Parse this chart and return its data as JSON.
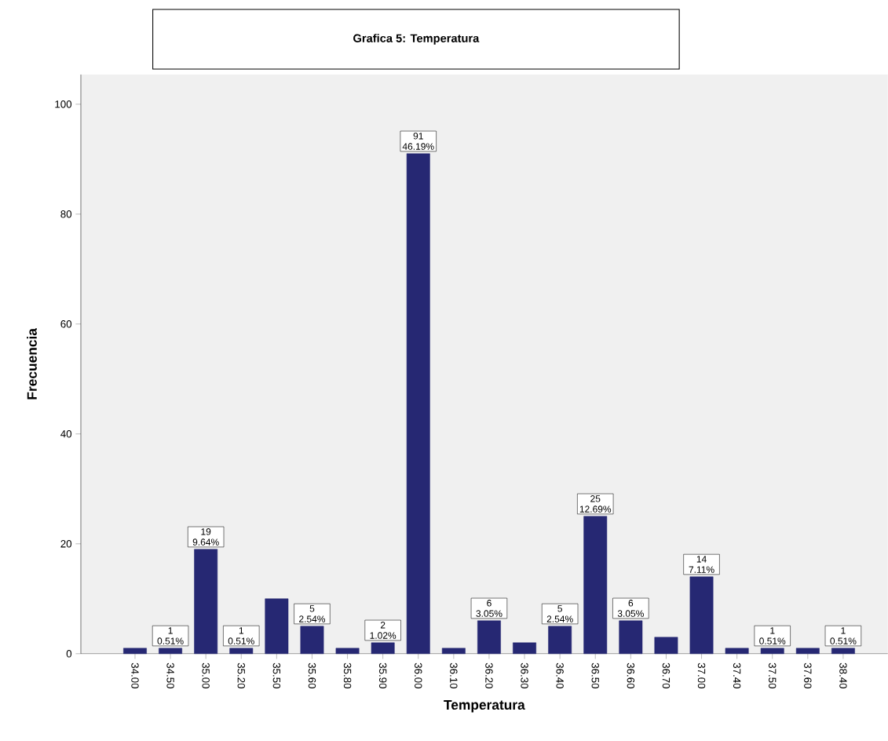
{
  "chart_data": {
    "type": "bar",
    "title": "Grafica 5: Temperatura",
    "xlabel": "Temperatura",
    "ylabel": "Frecuencia",
    "categories": [
      "34.00",
      "34.50",
      "35.00",
      "35.20",
      "35.50",
      "35.60",
      "35.80",
      "35.90",
      "36.00",
      "36.10",
      "36.20",
      "36.30",
      "36.40",
      "36.50",
      "36.60",
      "36.70",
      "37.00",
      "37.40",
      "37.50",
      "37.60",
      "38.40"
    ],
    "values": [
      1,
      1,
      19,
      1,
      10,
      5,
      1,
      2,
      91,
      1,
      6,
      2,
      5,
      25,
      6,
      3,
      14,
      1,
      1,
      1,
      1
    ],
    "value_labels": [
      null,
      "1 0.51%",
      "19 9.64%",
      "1 0.51%",
      null,
      "5 2.54%",
      null,
      "2 1.02%",
      "91 46.19%",
      null,
      "6 3.05%",
      null,
      "5 2.54%",
      "25 12.69%",
      "6 3.05%",
      null,
      "14 7.11%",
      null,
      "1 0.51%",
      null,
      "1 0.51%"
    ],
    "color": "#262873",
    "ylim": [
      0,
      105.4
    ],
    "yticks": [
      0,
      20,
      40,
      60,
      80,
      100
    ],
    "grid": false
  }
}
